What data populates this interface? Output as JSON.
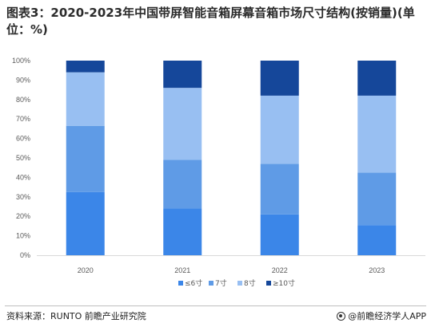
{
  "title": "图表3：2020-2023年中国带屏智能音箱屏幕音箱市场尺寸结构(按销量)(单位：%)",
  "source": "资料来源：RUNTO 前瞻产业研究院",
  "brand": "@前瞻经济学人APP",
  "chart_data": {
    "type": "bar",
    "stacked": true,
    "categories": [
      "2020",
      "2021",
      "2022",
      "2023"
    ],
    "ylim": [
      0,
      100
    ],
    "yticks": [
      "0%",
      "10%",
      "20%",
      "30%",
      "40%",
      "50%",
      "60%",
      "70%",
      "80%",
      "90%",
      "100%"
    ],
    "gridlines": false,
    "legend_position": "bottom",
    "series": [
      {
        "name": "≤6寸",
        "color": "#3b86e8",
        "values": [
          32.5,
          24.0,
          21.0,
          15.5
        ]
      },
      {
        "name": "7寸",
        "color": "#5f9be6",
        "values": [
          34.0,
          25.0,
          26.0,
          27.0
        ]
      },
      {
        "name": "8寸",
        "color": "#98bff2",
        "values": [
          27.5,
          37.0,
          35.0,
          39.5
        ]
      },
      {
        "name": "≥10寸",
        "color": "#15479a",
        "values": [
          6.0,
          14.0,
          18.0,
          18.0
        ]
      }
    ]
  }
}
